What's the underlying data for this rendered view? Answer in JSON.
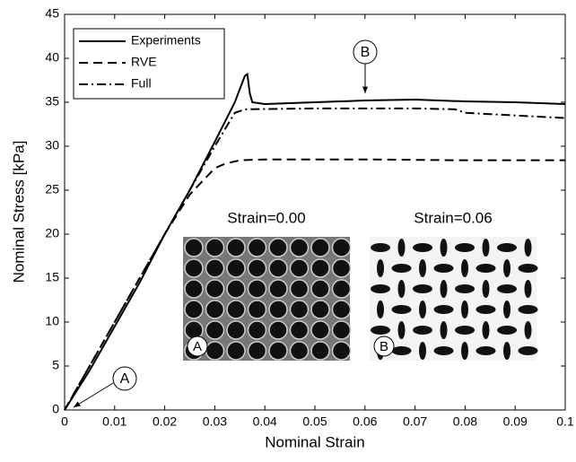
{
  "chart_data": {
    "type": "line",
    "xlabel": "Nominal Strain",
    "ylabel": "Nominal Stress [kPa]",
    "xlim": [
      0,
      0.1
    ],
    "ylim": [
      0,
      45
    ],
    "xticks": [
      0,
      0.01,
      0.02,
      0.03,
      0.04,
      0.05,
      0.06,
      0.07,
      0.08,
      0.09,
      0.1
    ],
    "yticks": [
      0,
      5,
      10,
      15,
      20,
      25,
      30,
      35,
      40,
      45
    ],
    "grid": false,
    "legend": "upper left",
    "series": [
      {
        "name": "Experiments",
        "color": "#000000",
        "linestyle": "solid",
        "x": [
          0,
          0.005,
          0.01,
          0.015,
          0.02,
          0.025,
          0.03,
          0.034,
          0.036,
          0.0365,
          0.037,
          0.0375,
          0.04,
          0.05,
          0.06,
          0.07,
          0.08,
          0.09,
          0.1
        ],
        "values": [
          0,
          4.5,
          9.5,
          14.5,
          20,
          25,
          30.5,
          35,
          38,
          38.2,
          36,
          35,
          34.8,
          35,
          35.2,
          35.3,
          35.1,
          35,
          34.8
        ]
      },
      {
        "name": "RVE",
        "color": "#000000",
        "linestyle": "dashed",
        "x": [
          0,
          0.005,
          0.01,
          0.015,
          0.02,
          0.025,
          0.03,
          0.032,
          0.035,
          0.04,
          0.06,
          0.08,
          0.1
        ],
        "values": [
          0,
          5,
          10,
          15,
          20,
          24.5,
          27.5,
          28,
          28.4,
          28.5,
          28.5,
          28.4,
          28.4
        ]
      },
      {
        "name": "Full",
        "color": "#000000",
        "linestyle": "dashdot",
        "x": [
          0,
          0.01,
          0.02,
          0.03,
          0.034,
          0.036,
          0.05,
          0.07,
          0.078,
          0.08,
          0.09,
          0.1
        ],
        "values": [
          0,
          10,
          20,
          30,
          33.8,
          34.2,
          34.3,
          34.3,
          34.2,
          33.8,
          33.5,
          33.2
        ]
      }
    ],
    "annotations": [
      "A",
      "B"
    ],
    "insets": [
      {
        "title": "Strain=0.00",
        "label": "A"
      },
      {
        "title": "Strain=0.06",
        "label": "B"
      }
    ]
  }
}
